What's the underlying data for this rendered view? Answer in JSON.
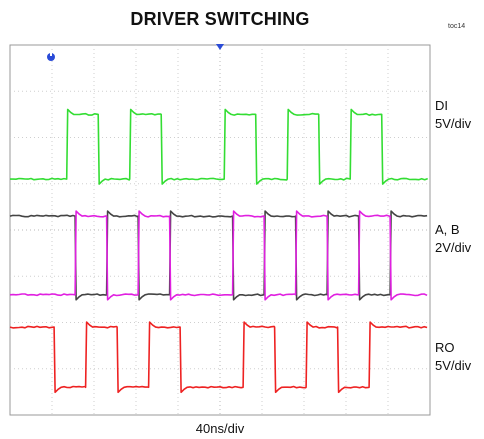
{
  "chart_data": {
    "type": "line",
    "title": "DRIVER SWITCHING",
    "figure_id": "toc14",
    "xlabel": "40ns/div",
    "x_divisions": 10,
    "y_divisions": 8,
    "grid": true,
    "markers": [
      "trigger marker (top, center)",
      "channel marker (top-left)"
    ],
    "channels": [
      {
        "name": "DI",
        "scale": "5V/div",
        "color": "#33dd33",
        "levels_div": {
          "low": 5.1,
          "high": 6.5
        },
        "transitions_ns": [
          -146,
          -116,
          -86,
          -56,
          4,
          34,
          64,
          94,
          124,
          154
        ]
      },
      {
        "name": "A",
        "scale": "2V/div",
        "color": "#444444",
        "levels_div": {
          "low": 2.6,
          "high": 4.3
        },
        "transitions_ns": [
          -138,
          -108,
          -78,
          -48,
          12,
          42,
          72,
          102,
          132,
          162
        ]
      },
      {
        "name": "B",
        "scale": "2V/div",
        "color": "#e020e0",
        "levels_div": {
          "low": 2.6,
          "high": 4.3
        },
        "transitions_ns": [
          -138,
          -108,
          -78,
          -48,
          12,
          42,
          72,
          102,
          132,
          162
        ]
      },
      {
        "name": "RO",
        "scale": "5V/div",
        "color": "#ee2222",
        "levels_div": {
          "low": 0.6,
          "high": 1.9
        },
        "transitions_ns": [
          -158,
          -128,
          -98,
          -68,
          -38,
          22,
          52,
          82,
          112,
          142
        ]
      }
    ],
    "labels": [
      {
        "lines": [
          "DI",
          "5V/div"
        ],
        "channel": "DI"
      },
      {
        "lines": [
          "A, B",
          "2V/div"
        ],
        "channel": "A"
      },
      {
        "lines": [
          "RO",
          "5V/div"
        ],
        "channel": "RO"
      }
    ]
  }
}
